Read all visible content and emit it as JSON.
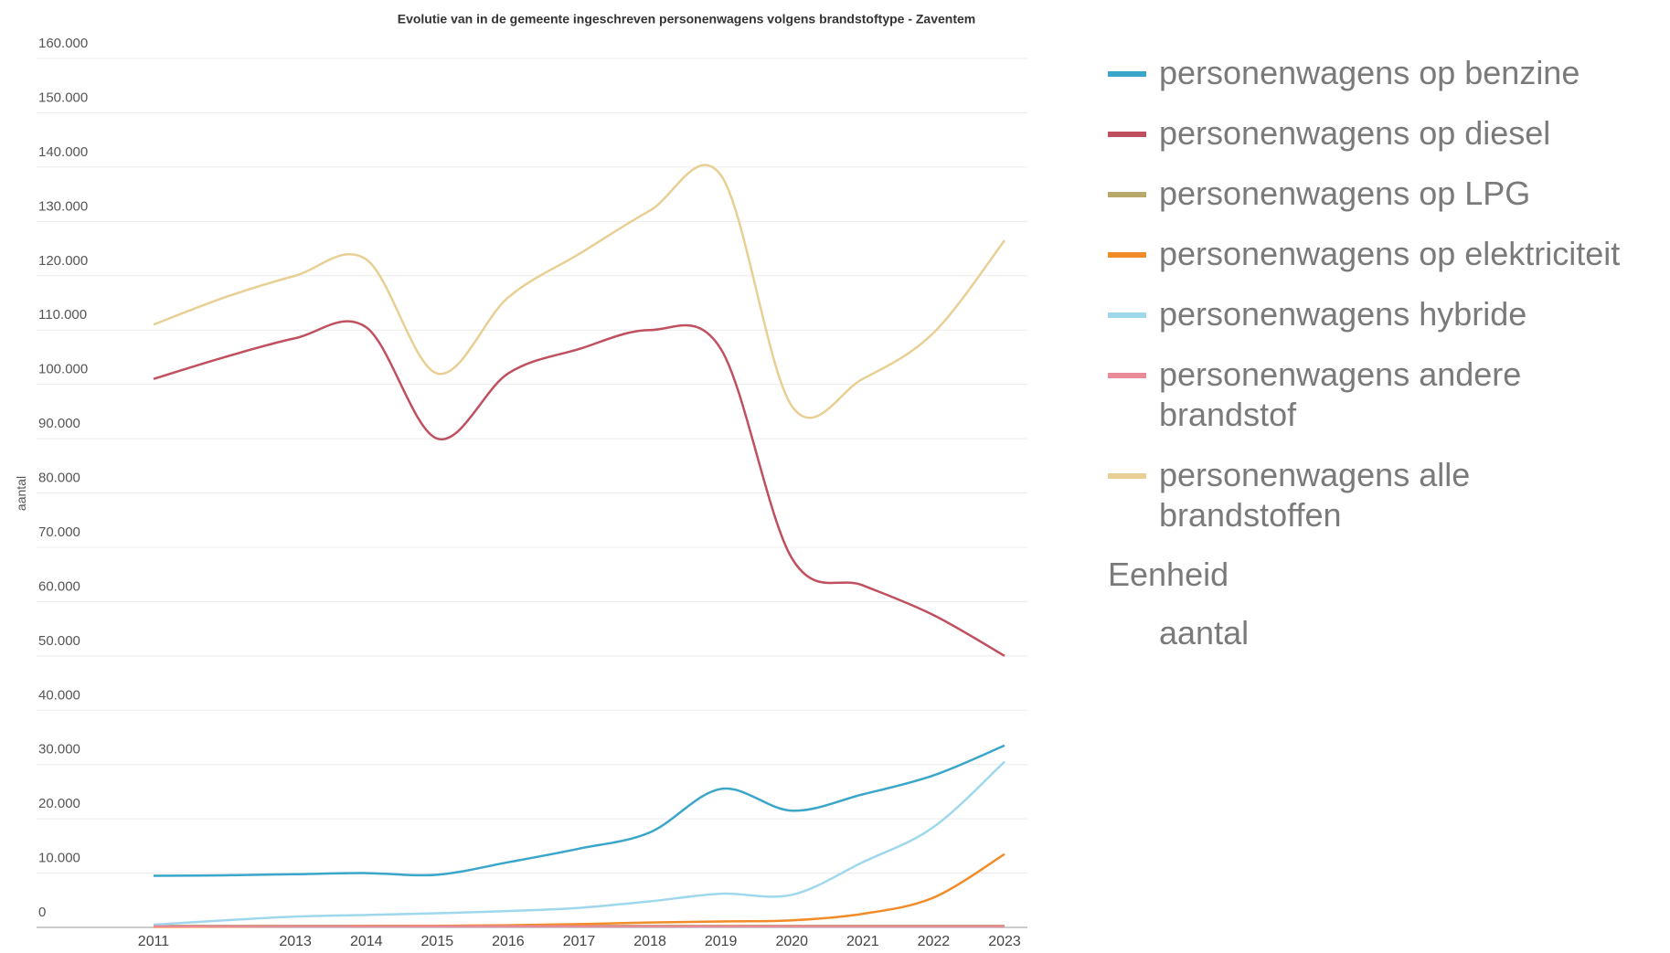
{
  "chart_data": {
    "type": "line",
    "title": "Evolutie van in de gemeente ingeschreven personenwagens volgens brandstoftype - Zaventem",
    "y_label": "aantal",
    "legend_title": "Eenheid",
    "legend_unit": "aantal",
    "categories": [
      "2011",
      null,
      "2013",
      "2014",
      "2015",
      "2016",
      "2017",
      "2018",
      "2019",
      "2020",
      "2021",
      "2022",
      "2023"
    ],
    "ylim": [
      0,
      160000
    ],
    "yticks": [
      0,
      {
        "value": 10000,
        "label": "10.000"
      },
      {
        "value": 20000,
        "label": "20.000"
      },
      {
        "value": 30000,
        "label": "30.000"
      },
      {
        "value": 40000,
        "label": "40.000"
      },
      {
        "value": 50000,
        "label": "50.000"
      },
      {
        "value": 60000,
        "label": "60.000"
      },
      {
        "value": 70000,
        "label": "70.000"
      },
      {
        "value": 80000,
        "label": "80.000"
      },
      {
        "value": 90000,
        "label": "90.000"
      },
      {
        "value": 100000,
        "label": "100.000"
      },
      {
        "value": 110000,
        "label": "110.000"
      },
      {
        "value": 120000,
        "label": "120.000"
      },
      {
        "value": 130000,
        "label": "130.000"
      },
      {
        "value": 140000,
        "label": "140.000"
      },
      {
        "value": 150000,
        "label": "150.000"
      },
      {
        "value": 160000,
        "label": "160.000"
      }
    ],
    "grid": true,
    "legend": "right",
    "series": [
      {
        "name": "personenwagens op benzine",
        "color": "#3aa6c9",
        "values": [
          9500,
          9600,
          9800,
          10000,
          9700,
          12000,
          14500,
          17500,
          25500,
          21500,
          24500,
          28000,
          33500
        ]
      },
      {
        "name": "personenwagens op diesel",
        "color": "#c0505f",
        "values": [
          101000,
          105000,
          108500,
          110500,
          90000,
          102000,
          106500,
          110000,
          106500,
          68000,
          63000,
          57500,
          50000
        ]
      },
      {
        "name": "personenwagens op LPG",
        "color": "#b8a96a",
        "values": [
          300,
          300,
          300,
          300,
          300,
          300,
          300,
          300,
          300,
          300,
          300,
          300,
          300
        ]
      },
      {
        "name": "personenwagens op elektriciteit",
        "color": "#f28c28",
        "values": [
          100,
          150,
          200,
          250,
          300,
          400,
          600,
          900,
          1100,
          1300,
          2500,
          5500,
          13500
        ]
      },
      {
        "name": "personenwagens hybride",
        "color": "#9fd8ec",
        "values": [
          500,
          1300,
          2000,
          2300,
          2600,
          3000,
          3600,
          4800,
          6200,
          6000,
          12000,
          18500,
          30500
        ]
      },
      {
        "name": "personenwagens andere brandstof",
        "color": "#e88a98",
        "values": [
          200,
          200,
          200,
          200,
          200,
          200,
          200,
          200,
          200,
          200,
          200,
          200,
          200
        ]
      },
      {
        "name": "personenwagens alle brandstoffen",
        "color": "#e8cf94",
        "values": [
          111000,
          116000,
          120000,
          123000,
          102000,
          116000,
          124000,
          132000,
          138500,
          96000,
          101000,
          109500,
          126500
        ]
      }
    ]
  }
}
